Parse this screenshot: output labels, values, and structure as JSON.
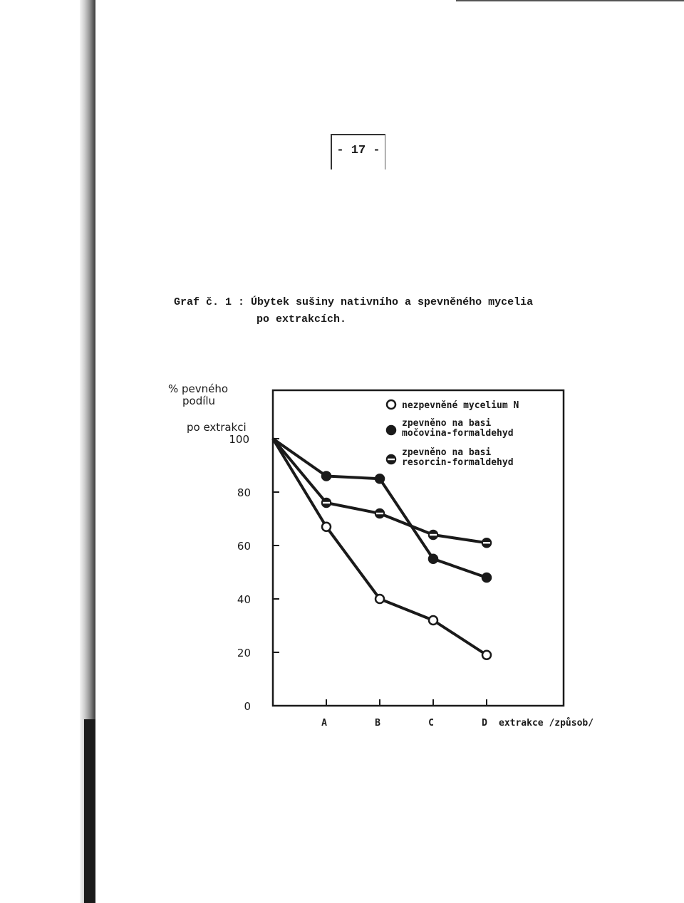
{
  "page_number": "- 17 -",
  "caption": {
    "line1": "Graf č. 1 : Úbytek sušiny nativního a spevněného mycelia",
    "line2": "po extrakcích."
  },
  "chart_data": {
    "type": "line",
    "ylabel_lines": [
      "% pevného",
      "podílu"
    ],
    "ylabel_line3": "po extrakci",
    "xlabel": "extrakce /způsob/",
    "categories": [
      "",
      "A",
      "B",
      "C",
      "D"
    ],
    "ylim": [
      0,
      100
    ],
    "yticks": [
      0,
      20,
      40,
      60,
      80,
      100
    ],
    "grid": false,
    "legend_position": "top-right",
    "series": [
      {
        "name": "nezpevněné mycelium N",
        "marker": "open",
        "values": [
          100,
          67,
          40,
          32,
          19
        ]
      },
      {
        "name": "zpevněno na basi močovina-formaldehyd",
        "marker": "filled",
        "values": [
          100,
          86,
          85,
          55,
          48
        ]
      },
      {
        "name": "zpevněno na basi resorcin-formaldehyd",
        "marker": "half",
        "values": [
          100,
          76,
          72,
          64,
          61
        ]
      }
    ],
    "legend_lines": [
      [
        "nezpevněné mycelium N"
      ],
      [
        "zpevněno na basi",
        "močovina-formaldehyd"
      ],
      [
        "zpevněno na basi",
        "resorcin-formaldehyd"
      ]
    ]
  }
}
